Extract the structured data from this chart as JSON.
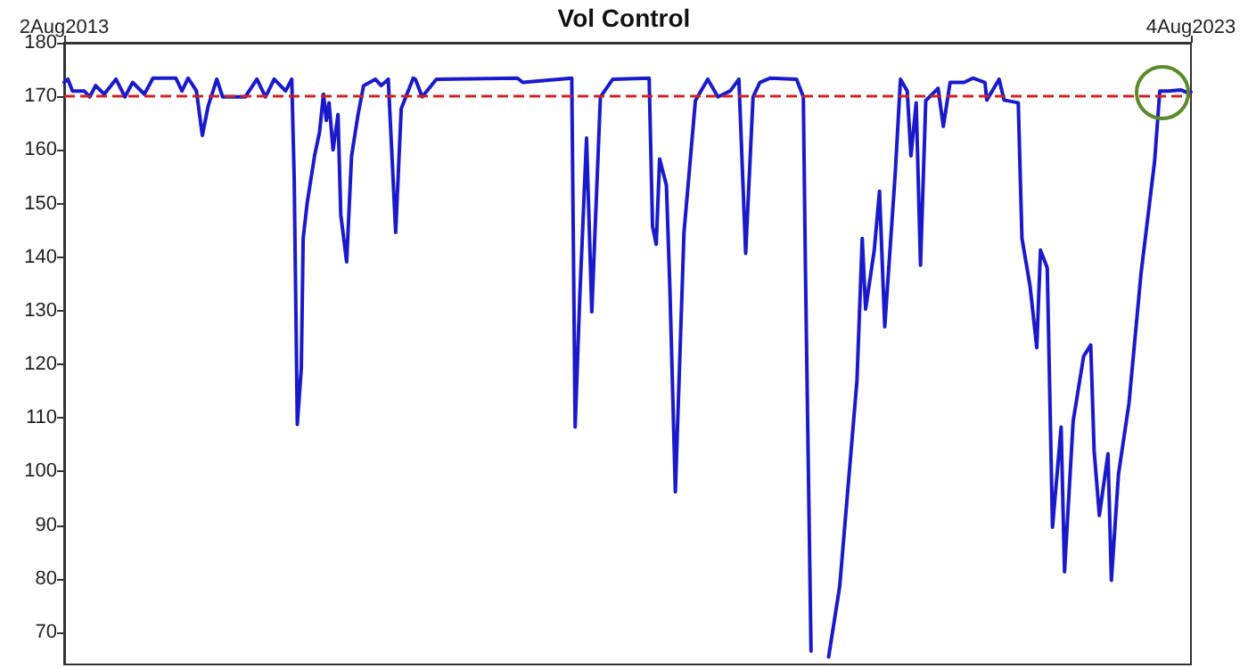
{
  "chart_data": {
    "type": "line",
    "title": "Vol Control",
    "x": [
      "2013-08-02",
      "2013-08-14",
      "2013-08-29",
      "2013-10-06",
      "2013-10-24",
      "2013-11-12",
      "2013-12-10",
      "2014-01-17",
      "2014-02-15",
      "2014-03-12",
      "2014-04-19",
      "2014-05-17",
      "2014-07-30",
      "2014-08-19",
      "2014-09-08",
      "2014-10-05",
      "2014-10-24",
      "2014-11-12",
      "2014-12-10",
      "2014-12-29",
      "2015-03-12",
      "2015-04-19",
      "2015-05-17",
      "2015-06-14",
      "2015-07-21",
      "2015-08-10",
      "2015-08-18",
      "2015-08-28",
      "2015-09-10",
      "2015-09-16",
      "2015-09-29",
      "2015-10-23",
      "2015-11-08",
      "2015-11-21",
      "2015-11-30",
      "2015-12-09",
      "2015-12-22",
      "2016-01-07",
      "2016-01-16",
      "2016-02-04",
      "2016-02-20",
      "2016-03-12",
      "2016-03-30",
      "2016-05-07",
      "2016-05-26",
      "2016-06-18",
      "2016-07-12",
      "2016-07-30",
      "2016-09-07",
      "2016-09-14",
      "2016-10-06",
      "2016-11-21",
      "2017-08-11",
      "2017-08-28",
      "2018-02-03",
      "2018-02-14",
      "2018-03-01",
      "2018-03-23",
      "2018-04-09",
      "2018-05-07",
      "2018-06-16",
      "2018-10-12",
      "2018-10-23",
      "2018-11-04",
      "2018-11-15",
      "2018-12-07",
      "2018-12-18",
      "2019-01-05",
      "2019-02-02",
      "2019-03-11",
      "2019-04-20",
      "2019-05-23",
      "2019-07-02",
      "2019-07-30",
      "2019-08-21",
      "2019-09-14",
      "2019-10-06",
      "2019-11-09",
      "2020-02-02",
      "2020-02-24",
      "2020-03-02",
      "2020-03-11",
      "2020-03-20",
      "2020-04-09",
      "2020-05-16",
      "2020-06-21",
      "2020-08-16",
      "2020-09-02",
      "2020-09-13",
      "2020-10-11",
      "2020-10-28",
      "2020-11-14",
      "2020-12-18",
      "2021-01-04",
      "2021-01-26",
      "2021-02-07",
      "2021-02-24",
      "2021-03-10",
      "2021-03-27",
      "2021-05-06",
      "2021-05-23",
      "2021-06-14",
      "2021-07-29",
      "2021-08-27",
      "2021-10-05",
      "2021-10-11",
      "2021-11-20",
      "2021-12-06",
      "2022-01-21",
      "2022-02-02",
      "2022-02-28",
      "2022-03-22",
      "2022-04-03",
      "2022-04-25",
      "2022-05-12",
      "2022-06-09",
      "2022-06-20",
      "2022-07-18",
      "2022-08-21",
      "2022-09-13",
      "2022-09-24",
      "2022-10-11",
      "2022-11-08",
      "2022-11-19",
      "2022-12-12",
      "2023-01-15",
      "2023-02-23",
      "2023-03-10",
      "2023-04-08",
      "2023-04-25",
      "2023-05-22",
      "2023-07-01",
      "2023-07-28",
      "2023-08-04"
    ],
    "series": [
      {
        "color": "#1a1acc",
        "values": [
          172.6,
          173.2,
          171,
          171,
          169.9,
          172,
          170.4,
          173.2,
          169.9,
          172.6,
          170.4,
          173.4,
          173.4,
          171,
          173.4,
          171,
          162.7,
          168.2,
          173.2,
          169.9,
          169.9,
          173.2,
          169.9,
          173.2,
          171,
          173.2,
          154.5,
          108.8,
          119.3,
          143.5,
          150.1,
          158.9,
          163.3,
          170.4,
          165.5,
          168.8,
          160,
          166.6,
          147.9,
          139.1,
          158.9,
          166.6,
          172,
          173.2,
          172,
          173.2,
          144.6,
          167.7,
          173.4,
          173.2,
          169.9,
          173.2,
          173.4,
          172.6,
          173.4,
          108.3,
          132.5,
          162.2,
          129.8,
          169.9,
          173.2,
          173.4,
          145.7,
          142.4,
          158.3,
          153.4,
          134.7,
          96.2,
          144.6,
          169.2,
          173.2,
          169.9,
          171,
          173.2,
          140.7,
          169.9,
          172.6,
          173.4,
          173.2,
          169.9,
          136.9,
          101.7,
          66.5,
          null,
          65.4,
          78.6,
          117,
          143.5,
          130.3,
          141.3,
          152.3,
          127,
          155.6,
          173.2,
          171,
          158.9,
          168.8,
          138.5,
          169.2,
          171.5,
          164.4,
          172.6,
          172.6,
          173.4,
          172.6,
          169.3,
          173.2,
          169.3,
          168.8,
          143.5,
          134.7,
          123.1,
          141.3,
          138,
          89.6,
          108.3,
          81.3,
          109.4,
          121.5,
          123.6,
          103.9,
          91.8,
          103.3,
          79.7,
          99.5,
          112.7,
          136.9,
          144,
          157.8,
          171,
          171,
          171.2,
          170.6,
          170.8
        ]
      }
    ],
    "xlim": [
      "2013-08-02",
      "2023-08-04"
    ],
    "xticks": [
      {
        "value": "2013-08-02",
        "label": "2Aug2013"
      },
      {
        "value": "2023-08-04",
        "label": "4Aug2023"
      }
    ],
    "ylim": [
      64,
      180
    ],
    "yticks": [
      70,
      80,
      90,
      100,
      110,
      120,
      130,
      140,
      150,
      160,
      170,
      180
    ],
    "ref_lines": [
      {
        "axis": "y",
        "value": 170,
        "color": "#cc2222",
        "line_style": "dashed"
      }
    ],
    "grid": false,
    "marker": "none",
    "line_style": "solid"
  }
}
